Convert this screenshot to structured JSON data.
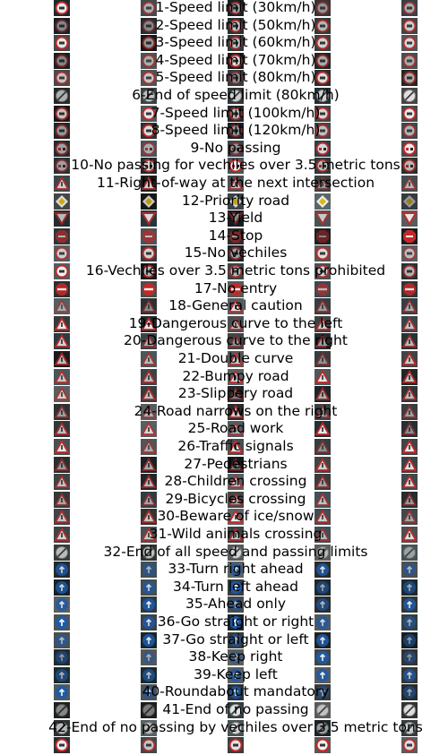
{
  "rows": [
    {
      "label": "1-Speed limit (30km/h)",
      "signs": [
        "speed-limit-icon",
        "speed-limit-icon",
        "speed-limit-icon",
        "speed-limit-icon",
        "speed-limit-icon"
      ]
    },
    {
      "label": "2-Speed limit (50km/h)",
      "signs": [
        "speed-limit-icon",
        "speed-limit-icon",
        "speed-limit-icon",
        "speed-limit-icon",
        "speed-limit-icon"
      ]
    },
    {
      "label": "3-Speed limit (60km/h)",
      "signs": [
        "speed-limit-icon",
        "speed-limit-icon",
        "speed-limit-icon",
        "speed-limit-icon",
        "speed-limit-icon"
      ]
    },
    {
      "label": "4-Speed limit (70km/h)",
      "signs": [
        "speed-limit-icon",
        "speed-limit-icon",
        "speed-limit-icon",
        "speed-limit-icon",
        "speed-limit-icon"
      ]
    },
    {
      "label": "5-Speed limit (80km/h)",
      "signs": [
        "speed-limit-icon",
        "speed-limit-icon",
        "speed-limit-icon",
        "speed-limit-icon",
        "speed-limit-icon"
      ]
    },
    {
      "label": "6-End of speed limit (80km/h)",
      "signs": [
        "end-speed-limit-icon",
        "end-speed-limit-icon",
        "end-speed-limit-icon",
        "end-speed-limit-icon",
        "end-speed-limit-icon"
      ]
    },
    {
      "label": "7-Speed limit (100km/h)",
      "signs": [
        "speed-limit-icon",
        "speed-limit-icon",
        "speed-limit-icon",
        "speed-limit-icon",
        "speed-limit-icon"
      ]
    },
    {
      "label": "8-Speed limit (120km/h)",
      "signs": [
        "speed-limit-icon",
        "speed-limit-icon",
        "speed-limit-icon",
        "speed-limit-icon",
        "speed-limit-icon"
      ]
    },
    {
      "label": "9-No passing",
      "signs": [
        "no-passing-icon",
        "no-passing-icon",
        "no-passing-icon",
        "no-passing-icon",
        "no-passing-icon"
      ]
    },
    {
      "label": "10-No passing for vechiles over 3.5 metric tons",
      "signs": [
        "no-passing-icon",
        "no-passing-icon",
        "no-passing-icon",
        "no-passing-icon",
        "no-passing-icon"
      ]
    },
    {
      "label": "11-Right-of-way at the next intersection",
      "signs": [
        "warning-triangle-icon",
        "warning-triangle-icon",
        "warning-triangle-icon",
        "warning-triangle-icon",
        "warning-triangle-icon"
      ]
    },
    {
      "label": "12-Priority road",
      "signs": [
        "priority-road-icon",
        "priority-road-icon",
        "priority-road-icon",
        "priority-road-icon",
        "priority-road-icon"
      ]
    },
    {
      "label": "13-Yield",
      "signs": [
        "yield-icon",
        "yield-icon",
        "yield-icon",
        "yield-icon",
        "yield-icon"
      ]
    },
    {
      "label": "14-Stop",
      "signs": [
        "stop-icon",
        "stop-icon",
        "stop-icon",
        "stop-icon",
        "stop-icon"
      ]
    },
    {
      "label": "15-No vechiles",
      "signs": [
        "prohibition-icon",
        "prohibition-icon",
        "prohibition-icon",
        "prohibition-icon",
        "prohibition-icon"
      ]
    },
    {
      "label": "16-Vechiles over 3.5 metric tons prohibited",
      "signs": [
        "prohibition-icon",
        "prohibition-icon",
        "prohibition-icon",
        "prohibition-icon",
        "prohibition-icon"
      ]
    },
    {
      "label": "17-No entry",
      "signs": [
        "no-entry-icon",
        "no-entry-icon",
        "no-entry-icon",
        "no-entry-icon",
        "no-entry-icon"
      ]
    },
    {
      "label": "18-General caution",
      "signs": [
        "warning-triangle-icon",
        "warning-triangle-icon",
        "warning-triangle-icon",
        "warning-triangle-icon",
        "warning-triangle-icon"
      ]
    },
    {
      "label": "19-Dangerous curve to the left",
      "signs": [
        "warning-triangle-icon",
        "warning-triangle-icon",
        "warning-triangle-icon",
        "warning-triangle-icon",
        "warning-triangle-icon"
      ]
    },
    {
      "label": "20-Dangerous curve to the right",
      "signs": [
        "warning-triangle-icon",
        "warning-triangle-icon",
        "warning-triangle-icon",
        "warning-triangle-icon",
        "warning-triangle-icon"
      ]
    },
    {
      "label": "21-Double curve",
      "signs": [
        "warning-triangle-icon",
        "warning-triangle-icon",
        "warning-triangle-icon",
        "warning-triangle-icon",
        "warning-triangle-icon"
      ]
    },
    {
      "label": "22-Bumpy road",
      "signs": [
        "warning-triangle-icon",
        "warning-triangle-icon",
        "warning-triangle-icon",
        "warning-triangle-icon",
        "warning-triangle-icon"
      ]
    },
    {
      "label": "23-Slippery road",
      "signs": [
        "warning-triangle-icon",
        "warning-triangle-icon",
        "warning-triangle-icon",
        "warning-triangle-icon",
        "warning-triangle-icon"
      ]
    },
    {
      "label": "24-Road narrows on the right",
      "signs": [
        "warning-triangle-icon",
        "warning-triangle-icon",
        "warning-triangle-icon",
        "warning-triangle-icon",
        "warning-triangle-icon"
      ]
    },
    {
      "label": "25-Road work",
      "signs": [
        "warning-triangle-icon",
        "warning-triangle-icon",
        "warning-triangle-icon",
        "warning-triangle-icon",
        "warning-triangle-icon"
      ]
    },
    {
      "label": "26-Traffic signals",
      "signs": [
        "warning-triangle-icon",
        "warning-triangle-icon",
        "warning-triangle-icon",
        "warning-triangle-icon",
        "warning-triangle-icon"
      ]
    },
    {
      "label": "27-Pedestrians",
      "signs": [
        "warning-triangle-icon",
        "warning-triangle-icon",
        "warning-triangle-icon",
        "warning-triangle-icon",
        "warning-triangle-icon"
      ]
    },
    {
      "label": "28-Children crossing",
      "signs": [
        "warning-triangle-icon",
        "warning-triangle-icon",
        "warning-triangle-icon",
        "warning-triangle-icon",
        "warning-triangle-icon"
      ]
    },
    {
      "label": "29-Bicycles crossing",
      "signs": [
        "warning-triangle-icon",
        "warning-triangle-icon",
        "warning-triangle-icon",
        "warning-triangle-icon",
        "warning-triangle-icon"
      ]
    },
    {
      "label": "30-Beware of ice/snow",
      "signs": [
        "warning-triangle-icon",
        "warning-triangle-icon",
        "warning-triangle-icon",
        "warning-triangle-icon",
        "warning-triangle-icon"
      ]
    },
    {
      "label": "31-Wild animals crossing",
      "signs": [
        "warning-triangle-icon",
        "warning-triangle-icon",
        "warning-triangle-icon",
        "warning-triangle-icon",
        "warning-triangle-icon"
      ]
    },
    {
      "label": "32-End of all speed and passing limits",
      "signs": [
        "end-restriction-icon",
        "end-restriction-icon",
        "end-restriction-icon",
        "end-restriction-icon",
        "end-restriction-icon"
      ]
    },
    {
      "label": "33-Turn right ahead",
      "signs": [
        "mandatory-blue-icon",
        "mandatory-blue-icon",
        "mandatory-blue-icon",
        "mandatory-blue-icon",
        "mandatory-blue-icon"
      ]
    },
    {
      "label": "34-Turn left ahead",
      "signs": [
        "mandatory-blue-icon",
        "mandatory-blue-icon",
        "mandatory-blue-icon",
        "mandatory-blue-icon",
        "mandatory-blue-icon"
      ]
    },
    {
      "label": "35-Ahead only",
      "signs": [
        "mandatory-blue-icon",
        "mandatory-blue-icon",
        "mandatory-blue-icon",
        "mandatory-blue-icon",
        "mandatory-blue-icon"
      ]
    },
    {
      "label": "36-Go straight or right",
      "signs": [
        "mandatory-blue-icon",
        "mandatory-blue-icon",
        "mandatory-blue-icon",
        "mandatory-blue-icon",
        "mandatory-blue-icon"
      ]
    },
    {
      "label": "37-Go straight or left",
      "signs": [
        "mandatory-blue-icon",
        "mandatory-blue-icon",
        "mandatory-blue-icon",
        "mandatory-blue-icon",
        "mandatory-blue-icon"
      ]
    },
    {
      "label": "38-Keep right",
      "signs": [
        "mandatory-blue-icon",
        "mandatory-blue-icon",
        "mandatory-blue-icon",
        "mandatory-blue-icon",
        "mandatory-blue-icon"
      ]
    },
    {
      "label": "39-Keep left",
      "signs": [
        "mandatory-blue-icon",
        "mandatory-blue-icon",
        "mandatory-blue-icon",
        "mandatory-blue-icon",
        "mandatory-blue-icon"
      ]
    },
    {
      "label": "40-Roundabout mandatory",
      "signs": [
        "mandatory-blue-icon",
        "mandatory-blue-icon",
        "mandatory-blue-icon",
        "mandatory-blue-icon",
        "mandatory-blue-icon"
      ]
    },
    {
      "label": "41-End of no passing",
      "signs": [
        "end-restriction-icon",
        "end-restriction-icon",
        "end-restriction-icon",
        "end-restriction-icon",
        "end-restriction-icon"
      ]
    },
    {
      "label": "42-End of no passing by vechiles over 3.5 metric tons",
      "signs": [
        "end-restriction-icon",
        "end-restriction-icon",
        "end-restriction-icon",
        "end-restriction-icon",
        "end-restriction-icon"
      ]
    }
  ],
  "extra_row_signs": [
    "speed-limit-icon",
    "speed-limit-icon",
    "speed-limit-icon",
    "speed-limit-icon",
    "speed-limit-icon"
  ],
  "colors": {
    "background": "#ffffff",
    "label_text": "#000000",
    "sign_red": "#c62828",
    "sign_blue": "#1e5aa8",
    "sign_yellow": "#f2c200",
    "photo_dark": "#24242c"
  }
}
